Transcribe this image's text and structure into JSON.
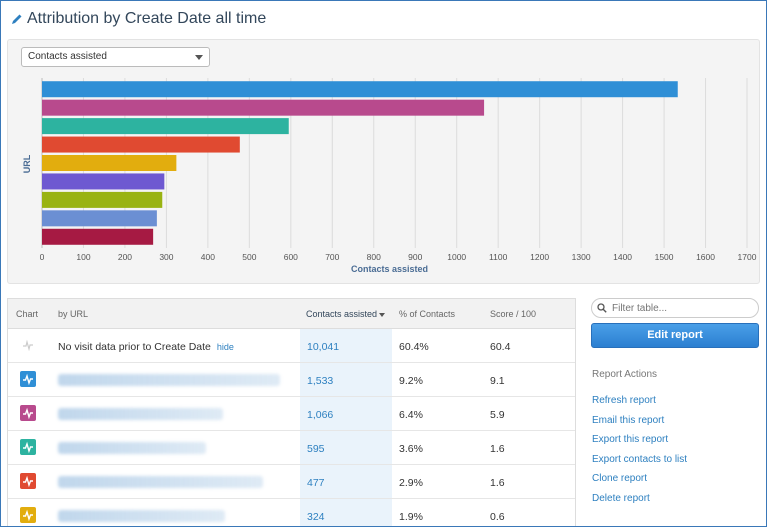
{
  "page": {
    "title": "Attribution by Create Date all time"
  },
  "chart_panel": {
    "metric_select_value": "Contacts assisted"
  },
  "chart_data": {
    "type": "bar",
    "orientation": "horizontal",
    "xlabel": "Contacts assisted",
    "ylabel": "URL",
    "xlim": [
      0,
      1700
    ],
    "xticks": [
      0,
      100,
      200,
      300,
      400,
      500,
      600,
      700,
      800,
      900,
      1000,
      1100,
      1200,
      1300,
      1400,
      1500,
      1600,
      1700
    ],
    "grid": true,
    "values": [
      1533,
      1066,
      595,
      477,
      324,
      295,
      290,
      277,
      268
    ],
    "colors": [
      "#2f8fd6",
      "#b84a8d",
      "#2db3a0",
      "#e04a31",
      "#e2ad0e",
      "#6e59d1",
      "#99b312",
      "#6b8fd3",
      "#a61a43"
    ]
  },
  "table": {
    "headers": {
      "chart": "Chart",
      "by": "by URL",
      "contacts": "Contacts assisted",
      "percent": "% of Contacts",
      "score": "Score / 100"
    },
    "first_row": {
      "label": "No visit data prior to Create Date",
      "hide": "hide",
      "contacts": "10,041",
      "percent": "60.4%",
      "score": "60.4"
    },
    "rows": [
      {
        "color": "#2f8fd6",
        "url_blur_width": 0,
        "contacts": "1,533",
        "percent": "9.2%",
        "score": "9.1"
      },
      {
        "color": "#b84a8d",
        "url_blur_width": 0,
        "contacts": "1,066",
        "percent": "6.4%",
        "score": "5.9"
      },
      {
        "color": "#2db3a0",
        "url_blur_width": 0,
        "contacts": "595",
        "percent": "3.6%",
        "score": "1.6"
      },
      {
        "color": "#e04a31",
        "url_blur_width": 0,
        "contacts": "477",
        "percent": "2.9%",
        "score": "1.6"
      },
      {
        "color": "#e2ad0e",
        "url_blur_width": 0,
        "contacts": "324",
        "percent": "1.9%",
        "score": "0.6"
      }
    ]
  },
  "sidebar": {
    "filter_placeholder": "Filter table...",
    "edit_button": "Edit report",
    "actions_heading": "Report Actions",
    "actions": [
      "Refresh report",
      "Email this report",
      "Export this report",
      "Export contacts to list",
      "Clone report",
      "Delete report"
    ]
  }
}
